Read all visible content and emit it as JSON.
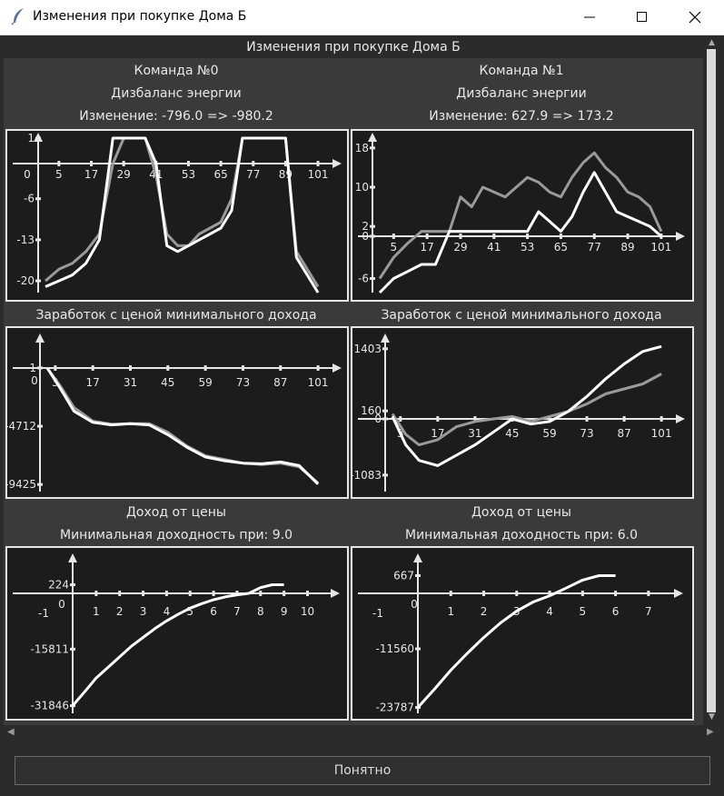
{
  "window": {
    "title": "Изменения при покупке Дома Б"
  },
  "header": {
    "title": "Изменения при покупке Дома Б"
  },
  "teams": [
    {
      "name": "Команда №0",
      "metric": "Дизбаланс энергии",
      "change": "Изменение: -796.0 => -980.2"
    },
    {
      "name": "Команда №1",
      "metric": "Дизбаланс энергии",
      "change": "Изменение: 627.9 => 173.2"
    }
  ],
  "sections": {
    "earnings_title": "Заработок с ценой минимального дохода",
    "income_title": "Доход от цены",
    "min_yield": [
      "Минимальная доходность при: 9.0",
      "Минимальная доходность при: 6.0"
    ]
  },
  "footer": {
    "ok_label": "Понятно"
  },
  "colors": {
    "background": "#2b2b2b",
    "panel": "#1c1c1c",
    "line_white": "#ffffff",
    "line_gray": "#9a9a9a"
  },
  "chart_data": [
    {
      "type": "line",
      "id": "energy-0",
      "x_ticks": [
        "5",
        "17",
        "29",
        "41",
        "53",
        "65",
        "77",
        "89",
        "101"
      ],
      "y_ticks": [
        "1",
        "-6",
        "-13",
        "-20"
      ],
      "extra_labels": [
        "0"
      ],
      "series": [
        {
          "color": "gray",
          "x": [
            0,
            5,
            10,
            15,
            20,
            25,
            29,
            33,
            37,
            41,
            45,
            49,
            53,
            57,
            61,
            65,
            69,
            73,
            77,
            81,
            85,
            89,
            93,
            97,
            101
          ],
          "y": [
            -20,
            -18,
            -17,
            -15,
            -12,
            0,
            1,
            1,
            1,
            -2,
            -12,
            -14,
            -14,
            -12,
            -11,
            -10,
            -6,
            1,
            1,
            1,
            1,
            1,
            -15,
            -18,
            -21
          ]
        },
        {
          "color": "white",
          "x": [
            0,
            5,
            10,
            15,
            20,
            25,
            29,
            33,
            37,
            41,
            45,
            49,
            53,
            57,
            61,
            65,
            69,
            73,
            77,
            81,
            85,
            89,
            93,
            97,
            101
          ],
          "y": [
            -21,
            -20,
            -19,
            -17,
            -13,
            1,
            1,
            1,
            1,
            0,
            -14,
            -15,
            -14,
            -13,
            -12,
            -11,
            -8,
            1,
            1,
            1,
            1,
            1,
            -16,
            -19,
            -22
          ]
        }
      ]
    },
    {
      "type": "line",
      "id": "energy-1",
      "x_ticks": [
        "5",
        "17",
        "29",
        "41",
        "53",
        "65",
        "77",
        "89",
        "101"
      ],
      "y_ticks": [
        "18",
        "10",
        "2",
        "0",
        "-6"
      ],
      "series": [
        {
          "color": "gray",
          "x": [
            0,
            5,
            10,
            15,
            20,
            25,
            29,
            33,
            37,
            41,
            45,
            49,
            53,
            57,
            61,
            65,
            69,
            73,
            77,
            81,
            85,
            89,
            93,
            97,
            101
          ],
          "y": [
            -6,
            -3,
            -1,
            1,
            1,
            1,
            8,
            6,
            10,
            9,
            8,
            10,
            12,
            11,
            9,
            8,
            12,
            15,
            17,
            14,
            12,
            9,
            8,
            6,
            1
          ]
        },
        {
          "color": "white",
          "x": [
            0,
            5,
            10,
            15,
            20,
            25,
            29,
            33,
            37,
            41,
            45,
            49,
            53,
            57,
            61,
            65,
            69,
            73,
            77,
            81,
            85,
            89,
            93,
            97,
            101
          ],
          "y": [
            -8,
            -6,
            -5,
            -4,
            -4,
            1,
            1,
            1,
            1,
            1,
            1,
            1,
            1,
            5,
            3,
            1,
            4,
            9,
            13,
            9,
            5,
            4,
            3,
            2,
            0
          ]
        }
      ]
    },
    {
      "type": "line",
      "id": "earn-0",
      "x_ticks": [
        "3",
        "17",
        "31",
        "45",
        "59",
        "73",
        "87",
        "101"
      ],
      "y_ticks": [
        "1",
        "-4712",
        "-9425"
      ],
      "extra_labels": [
        "0"
      ],
      "series": [
        {
          "color": "gray",
          "x": [
            0,
            5,
            10,
            17,
            24,
            31,
            38,
            45,
            52,
            59,
            66,
            73,
            80,
            87,
            94,
            101
          ],
          "y": [
            0,
            -1500,
            -3200,
            -4300,
            -4550,
            -4500,
            -4500,
            -5200,
            -6300,
            -7100,
            -7400,
            -7700,
            -7800,
            -7700,
            -8000,
            -9300
          ]
        },
        {
          "color": "white",
          "x": [
            0,
            5,
            10,
            17,
            24,
            31,
            38,
            45,
            52,
            59,
            66,
            73,
            80,
            87,
            94,
            101
          ],
          "y": [
            0,
            -1700,
            -3500,
            -4400,
            -4600,
            -4500,
            -4600,
            -5400,
            -6400,
            -7200,
            -7500,
            -7700,
            -7750,
            -7600,
            -7900,
            -9400
          ]
        }
      ]
    },
    {
      "type": "line",
      "id": "earn-1",
      "x_ticks": [
        "3",
        "17",
        "31",
        "45",
        "59",
        "73",
        "87",
        "101"
      ],
      "y_ticks": [
        "1403",
        "160",
        "0",
        "-1083"
      ],
      "series": [
        {
          "color": "gray",
          "x": [
            0,
            5,
            10,
            17,
            24,
            31,
            38,
            45,
            52,
            59,
            66,
            73,
            80,
            87,
            94,
            101
          ],
          "y": [
            100,
            -300,
            -500,
            -400,
            -150,
            -50,
            0,
            50,
            -50,
            50,
            150,
            300,
            500,
            600,
            700,
            900
          ]
        },
        {
          "color": "white",
          "x": [
            0,
            5,
            10,
            17,
            24,
            31,
            38,
            45,
            52,
            59,
            66,
            73,
            80,
            87,
            94,
            101
          ],
          "y": [
            50,
            -500,
            -800,
            -900,
            -700,
            -500,
            -250,
            0,
            -100,
            -50,
            150,
            450,
            800,
            1100,
            1350,
            1450
          ]
        }
      ]
    },
    {
      "type": "line",
      "id": "income-0",
      "x_ticks": [
        "1",
        "2",
        "3",
        "4",
        "5",
        "6",
        "7",
        "8",
        "9",
        "10"
      ],
      "y_ticks": [
        "224",
        "-15811",
        "-31846"
      ],
      "extra_labels": [
        "0",
        "-1"
      ],
      "series": [
        {
          "color": "white",
          "x": [
            0,
            0.5,
            1,
            1.5,
            2,
            2.5,
            3,
            3.5,
            4,
            4.5,
            5,
            5.5,
            6,
            6.5,
            7,
            7.5,
            8,
            8.5,
            9
          ],
          "y": [
            -31846,
            -28000,
            -24000,
            -21000,
            -18000,
            -15000,
            -12500,
            -10000,
            -7800,
            -5900,
            -4200,
            -2900,
            -1800,
            -1000,
            -400,
            0,
            150,
            224,
            224
          ]
        }
      ]
    },
    {
      "type": "line",
      "id": "income-1",
      "x_ticks": [
        "1",
        "2",
        "3",
        "4",
        "5",
        "6",
        "7"
      ],
      "y_ticks": [
        "667",
        "-11560",
        "-23787"
      ],
      "extra_labels": [
        "0",
        "-1"
      ],
      "series": [
        {
          "color": "white",
          "x": [
            0,
            0.5,
            1,
            1.5,
            2,
            2.5,
            3,
            3.5,
            4,
            4.5,
            5,
            5.5,
            6
          ],
          "y": [
            -23787,
            -20000,
            -16000,
            -12500,
            -9200,
            -6200,
            -3700,
            -1800,
            -500,
            200,
            500,
            667,
            667
          ]
        }
      ]
    }
  ]
}
